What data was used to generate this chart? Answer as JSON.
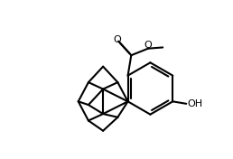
{
  "bg_color": "#ffffff",
  "line_color": "#000000",
  "line_width": 1.5,
  "figure_width": 2.58,
  "figure_height": 1.76,
  "dpi": 100,
  "xlim": [
    0,
    10
  ],
  "ylim": [
    0,
    7
  ]
}
